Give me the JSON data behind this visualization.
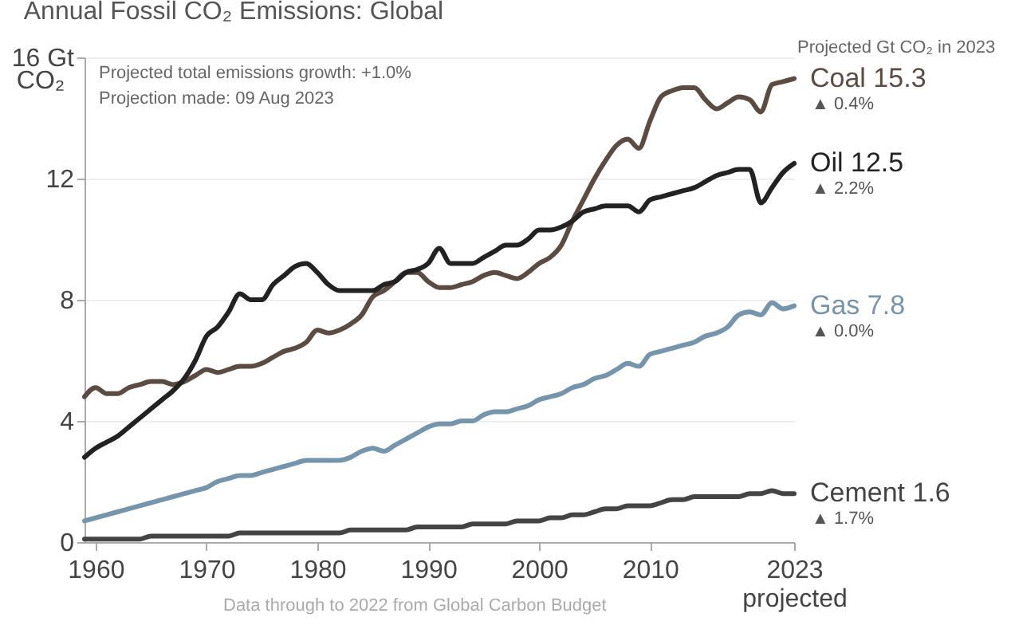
{
  "chart_data": {
    "type": "line",
    "title": "Annual Fossil CO₂ Emissions: Global",
    "ylabel": "CO₂",
    "x": [
      1959,
      1960,
      1961,
      1962,
      1963,
      1964,
      1965,
      1966,
      1967,
      1968,
      1969,
      1970,
      1971,
      1972,
      1973,
      1974,
      1975,
      1976,
      1977,
      1978,
      1979,
      1980,
      1981,
      1982,
      1983,
      1984,
      1985,
      1986,
      1987,
      1988,
      1989,
      1990,
      1991,
      1992,
      1993,
      1994,
      1995,
      1996,
      1997,
      1998,
      1999,
      2000,
      2001,
      2002,
      2003,
      2004,
      2005,
      2006,
      2007,
      2008,
      2009,
      2010,
      2011,
      2012,
      2013,
      2014,
      2015,
      2016,
      2017,
      2018,
      2019,
      2020,
      2021,
      2022,
      2023
    ],
    "xlim": [
      1959,
      2023
    ],
    "xticks": [
      1960,
      1970,
      1980,
      1990,
      2000,
      2010,
      {
        "value": 2023,
        "label": "2023\nprojected"
      }
    ],
    "ylim": [
      0,
      16
    ],
    "yticks": [
      0,
      4,
      8,
      12,
      {
        "value": 16,
        "label": "16 Gt"
      }
    ],
    "grid": "y",
    "series": [
      {
        "name": "Coal",
        "color": "#5c4b41",
        "values": [
          4.8,
          5.1,
          4.9,
          4.9,
          5.1,
          5.2,
          5.3,
          5.3,
          5.2,
          5.3,
          5.5,
          5.7,
          5.6,
          5.7,
          5.8,
          5.8,
          5.9,
          6.1,
          6.3,
          6.4,
          6.6,
          7.0,
          6.9,
          7.0,
          7.2,
          7.5,
          8.1,
          8.3,
          8.6,
          8.9,
          8.9,
          8.6,
          8.4,
          8.4,
          8.5,
          8.6,
          8.8,
          8.9,
          8.8,
          8.7,
          8.9,
          9.2,
          9.4,
          9.8,
          10.6,
          11.3,
          12.0,
          12.6,
          13.1,
          13.3,
          13.0,
          13.9,
          14.7,
          14.9,
          15.0,
          15.0,
          14.6,
          14.3,
          14.5,
          14.7,
          14.6,
          14.2,
          15.1,
          15.2,
          15.3
        ],
        "value_labels": [
          null,
          null,
          null,
          null,
          null,
          null,
          null,
          null,
          null,
          null,
          null,
          null,
          null,
          null,
          null,
          null,
          null,
          null,
          null,
          null,
          null,
          null,
          null,
          null,
          null,
          null,
          null,
          null,
          null,
          null,
          null,
          null,
          null,
          null,
          null,
          null,
          null,
          null,
          null,
          null,
          null,
          null,
          null,
          null,
          null,
          null,
          null,
          null,
          null,
          null,
          null,
          null,
          null,
          null,
          null,
          null,
          null,
          null,
          null,
          null,
          null,
          null,
          null,
          null,
          "15.3"
        ]
      },
      {
        "name": "Oil",
        "color": "#222222",
        "values": [
          2.8,
          3.1,
          3.3,
          3.5,
          3.8,
          4.1,
          4.4,
          4.7,
          5.0,
          5.4,
          6.0,
          6.8,
          7.1,
          7.6,
          8.2,
          8.0,
          8.0,
          8.5,
          8.8,
          9.1,
          9.2,
          8.9,
          8.5,
          8.3,
          8.3,
          8.3,
          8.3,
          8.5,
          8.6,
          8.9,
          9.0,
          9.2,
          9.7,
          9.2,
          9.2,
          9.2,
          9.4,
          9.6,
          9.8,
          9.8,
          10.0,
          10.3,
          10.3,
          10.4,
          10.6,
          10.9,
          11.0,
          11.1,
          11.1,
          11.1,
          10.9,
          11.3,
          11.4,
          11.5,
          11.6,
          11.7,
          11.9,
          12.1,
          12.2,
          12.3,
          12.3,
          11.2,
          11.7,
          12.2,
          12.5
        ],
        "value_labels": [
          null,
          null,
          null,
          null,
          null,
          null,
          null,
          null,
          null,
          null,
          null,
          null,
          null,
          null,
          null,
          null,
          null,
          null,
          null,
          null,
          null,
          null,
          null,
          null,
          null,
          null,
          null,
          null,
          null,
          null,
          null,
          null,
          null,
          null,
          null,
          null,
          null,
          null,
          null,
          null,
          null,
          null,
          null,
          null,
          null,
          null,
          null,
          null,
          null,
          null,
          null,
          null,
          null,
          null,
          null,
          null,
          null,
          null,
          null,
          null,
          null,
          null,
          null,
          null,
          "12.5"
        ]
      },
      {
        "name": "Gas",
        "color": "#7595ad",
        "values": [
          0.7,
          0.8,
          0.9,
          1.0,
          1.1,
          1.2,
          1.3,
          1.4,
          1.5,
          1.6,
          1.7,
          1.8,
          2.0,
          2.1,
          2.2,
          2.2,
          2.3,
          2.4,
          2.5,
          2.6,
          2.7,
          2.7,
          2.7,
          2.7,
          2.8,
          3.0,
          3.1,
          3.0,
          3.2,
          3.4,
          3.6,
          3.8,
          3.9,
          3.9,
          4.0,
          4.0,
          4.2,
          4.3,
          4.3,
          4.4,
          4.5,
          4.7,
          4.8,
          4.9,
          5.1,
          5.2,
          5.4,
          5.5,
          5.7,
          5.9,
          5.8,
          6.2,
          6.3,
          6.4,
          6.5,
          6.6,
          6.8,
          6.9,
          7.1,
          7.5,
          7.6,
          7.5,
          7.9,
          7.7,
          7.8
        ],
        "value_labels": [
          null,
          null,
          null,
          null,
          null,
          null,
          null,
          null,
          null,
          null,
          null,
          null,
          null,
          null,
          null,
          null,
          null,
          null,
          null,
          null,
          null,
          null,
          null,
          null,
          null,
          null,
          null,
          null,
          null,
          null,
          null,
          null,
          null,
          null,
          null,
          null,
          null,
          null,
          null,
          null,
          null,
          null,
          null,
          null,
          null,
          null,
          null,
          null,
          null,
          null,
          null,
          null,
          null,
          null,
          null,
          null,
          null,
          null,
          null,
          null,
          null,
          null,
          null,
          null,
          "7.8"
        ]
      },
      {
        "name": "Cement",
        "color": "#444444",
        "values": [
          0.1,
          0.1,
          0.1,
          0.1,
          0.1,
          0.1,
          0.2,
          0.2,
          0.2,
          0.2,
          0.2,
          0.2,
          0.2,
          0.2,
          0.3,
          0.3,
          0.3,
          0.3,
          0.3,
          0.3,
          0.3,
          0.3,
          0.3,
          0.3,
          0.4,
          0.4,
          0.4,
          0.4,
          0.4,
          0.4,
          0.5,
          0.5,
          0.5,
          0.5,
          0.5,
          0.6,
          0.6,
          0.6,
          0.6,
          0.7,
          0.7,
          0.7,
          0.8,
          0.8,
          0.9,
          0.9,
          1.0,
          1.1,
          1.1,
          1.2,
          1.2,
          1.2,
          1.3,
          1.4,
          1.4,
          1.5,
          1.5,
          1.5,
          1.5,
          1.5,
          1.6,
          1.6,
          1.7,
          1.6,
          1.6
        ],
        "value_labels": [
          null,
          null,
          null,
          null,
          null,
          null,
          null,
          null,
          null,
          null,
          null,
          null,
          null,
          null,
          null,
          null,
          null,
          null,
          null,
          null,
          null,
          null,
          null,
          null,
          null,
          null,
          null,
          null,
          null,
          null,
          null,
          null,
          null,
          null,
          null,
          null,
          null,
          null,
          null,
          null,
          null,
          null,
          null,
          null,
          null,
          null,
          null,
          null,
          null,
          null,
          null,
          null,
          null,
          null,
          null,
          null,
          null,
          null,
          null,
          null,
          null,
          null,
          null,
          null,
          "1.6"
        ]
      }
    ],
    "annotations": [
      "Projected total emissions growth: +1.0%",
      "Projection made: 09 Aug 2023",
      "Projected Gt CO₂ in 2023",
      "Data through to 2022 from Global Carbon Budget",
      "▲ 0.4%",
      "▲ 2.2%",
      "▲ 0.0%",
      "▲ 1.7%"
    ]
  }
}
